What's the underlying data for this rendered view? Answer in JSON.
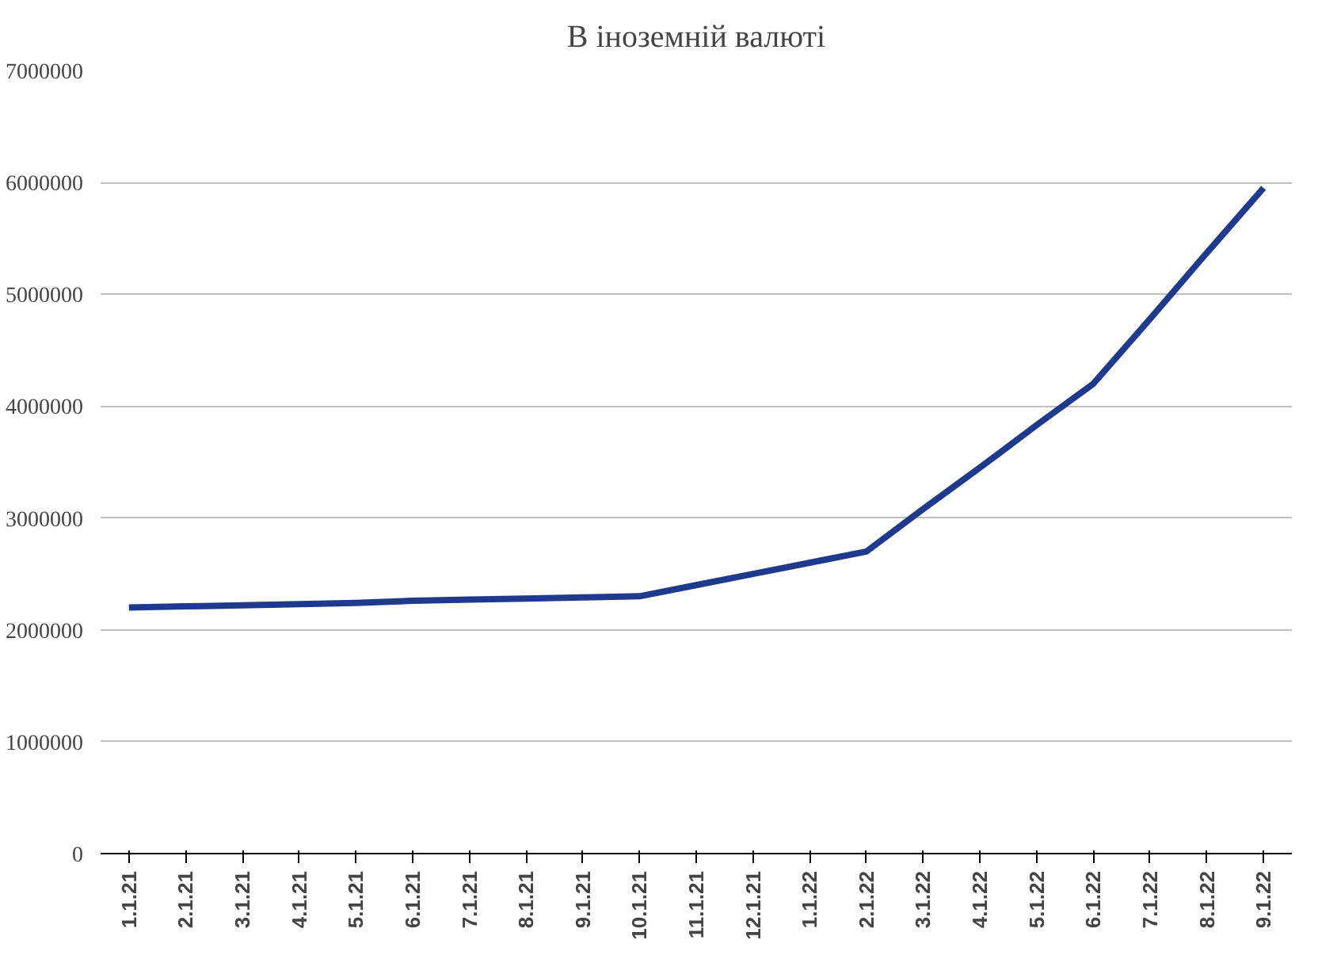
{
  "chart_data": {
    "type": "line",
    "title": "В іноземній валюті",
    "categories": [
      "1.1.21",
      "2.1.21",
      "3.1.21",
      "4.1.21",
      "5.1.21",
      "6.1.21",
      "7.1.21",
      "8.1.21",
      "9.1.21",
      "10.1.21",
      "11.1.21",
      "12.1.21",
      "1.1.22",
      "2.1.22",
      "3.1.22",
      "4.1.22",
      "5.1.22",
      "6.1.22",
      "7.1.22",
      "8.1.22",
      "9.1.22"
    ],
    "series": [
      {
        "color": "#1f3a8c",
        "values": [
          2200000,
          2210000,
          2220000,
          2230000,
          2240000,
          2260000,
          2270000,
          2280000,
          2290000,
          2300000,
          2400000,
          2500000,
          2600000,
          2700000,
          3080000,
          3450000,
          3830000,
          4200000,
          4780000,
          5370000,
          5950000
        ]
      }
    ],
    "ylim": [
      0,
      7000000
    ],
    "yticks": [
      0,
      1000000,
      2000000,
      3000000,
      4000000,
      5000000,
      6000000,
      7000000
    ],
    "grid": "y",
    "marker": "none",
    "line_style": "solid"
  }
}
